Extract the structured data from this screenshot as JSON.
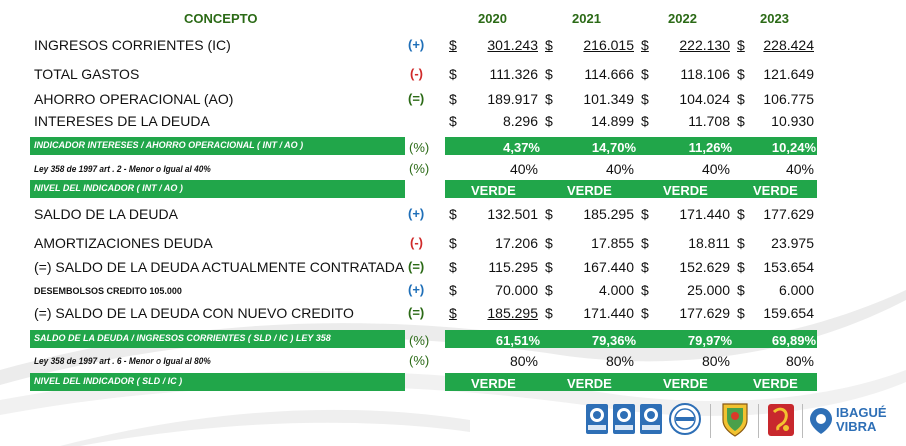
{
  "header": {
    "concepto": "CONCEPTO",
    "years": [
      "2020",
      "2021",
      "2022",
      "2023"
    ]
  },
  "rows": [
    {
      "label": "INGRESOS  CORRIENTES (IC)",
      "sign": "(+)",
      "values": [
        "301.243",
        "216.015",
        "222.130",
        "228.424"
      ]
    },
    {
      "label": "TOTAL GASTOS",
      "sign": "(-)",
      "values": [
        "111.326",
        "114.666",
        "118.106",
        "121.649"
      ]
    },
    {
      "label": "AHORRO OPERACIONAL (AO)",
      "sign": "(=)",
      "values": [
        "189.917",
        "101.349",
        "104.024",
        "106.775"
      ]
    },
    {
      "label": "INTERESES DE LA  DEUDA",
      "sign": "",
      "values": [
        "8.296",
        "14.899",
        "11.708",
        "10.930"
      ]
    },
    {
      "label": "INDICADOR INTERESES / AHORRO OPERACIONAL ( INT / AO )",
      "sign": "(%)",
      "values": [
        "4,37%",
        "14,70%",
        "11,26%",
        "10,24%"
      ]
    },
    {
      "label": "Ley 358 de 1997 art . 2   -  Menor o Igual al 40%",
      "sign": "(%)",
      "values": [
        "40%",
        "40%",
        "40%",
        "40%"
      ]
    },
    {
      "label": "NIVEL DEL INDICADOR ( INT / AO )",
      "sign": "",
      "values": [
        "VERDE",
        "VERDE",
        "VERDE",
        "VERDE"
      ]
    },
    {
      "label": "SALDO DE LA DEUDA",
      "sign": "(+)",
      "values": [
        "132.501",
        "185.295",
        "171.440",
        "177.629"
      ]
    },
    {
      "label": "AMORTIZACIONES DEUDA",
      "sign": "(-)",
      "values": [
        "17.206",
        "17.855",
        "18.811",
        "23.975"
      ]
    },
    {
      "label": "(=) SALDO DE LA DEUDA ACTUALMENTE CONTRATADA",
      "sign": "(=)",
      "values": [
        "115.295",
        "167.440",
        "152.629",
        "153.654"
      ]
    },
    {
      "label": "DESEMBOLSOS CREDITO 105.000",
      "sign": "(+)",
      "values": [
        "70.000",
        "4.000",
        "25.000",
        "6.000"
      ]
    },
    {
      "label": "(=) SALDO DE LA DEUDA CON NUEVO CREDITO",
      "sign": "(=)",
      "values": [
        "185.295",
        "171.440",
        "177.629",
        "159.654"
      ]
    },
    {
      "label": "SALDO DE LA DEUDA  / INGRESOS CORRIENTES ( SLD / IC ) LEY 358",
      "sign": "(%)",
      "values": [
        "61,51%",
        "79,36%",
        "79,97%",
        "69,89%"
      ]
    },
    {
      "label": "Ley 358 de 1997 art . 6 -  Menor o Igual al 80%",
      "sign": "(%)",
      "values": [
        "80%",
        "80%",
        "80%",
        "80%"
      ]
    },
    {
      "label": "NIVEL DEL INDICADOR ( SLD / IC )",
      "sign": "",
      "values": [
        "VERDE",
        "VERDE",
        "VERDE",
        "VERDE"
      ]
    }
  ],
  "currency": "$",
  "colors": {
    "band": "#21a64a",
    "header_text": "#2b6a16",
    "plus": "#1f6fb8",
    "minus": "#d02a2a",
    "swoosh": "#ececec"
  },
  "logos": {
    "certifications": [
      "icontec-cert-icon",
      "icontec-cert-icon",
      "icontec-cert-icon",
      "iqnet-cert-icon"
    ],
    "seal": "escudo-ibague-icon",
    "city_logo": "alcaldia-emblem-icon",
    "brand": {
      "line1": "IBAGUÉ",
      "line2": "VIBRA"
    }
  }
}
